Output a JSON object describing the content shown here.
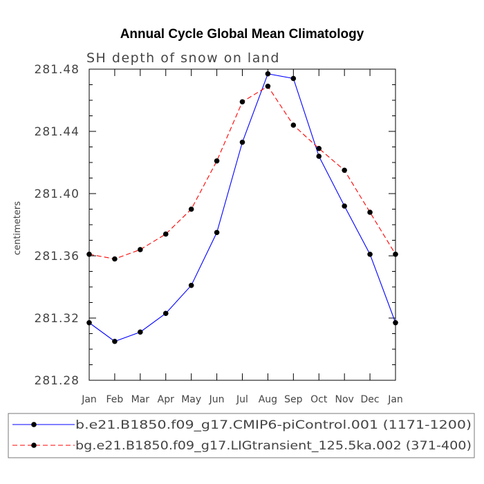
{
  "chart_data": {
    "type": "line",
    "title": "Annual Cycle Global Mean Climatology",
    "subtitle": "SH depth of snow on land",
    "ylabel": "centimeters",
    "xlabel": "",
    "categories": [
      "Jan",
      "Feb",
      "Mar",
      "Apr",
      "May",
      "Jun",
      "Jul",
      "Aug",
      "Sep",
      "Oct",
      "Nov",
      "Dec",
      "Jan"
    ],
    "ylim": [
      281.28,
      281.48
    ],
    "yticks": [
      "281.28",
      "281.32",
      "281.36",
      "281.40",
      "281.44",
      "281.48"
    ],
    "grid": false,
    "legend_position": "bottom",
    "series": [
      {
        "name": "b.e21.B1850.f09_g17.CMIP6-piControl.001 (1171-1200)",
        "color": "#0000ff",
        "dash": "solid",
        "values": [
          281.317,
          281.305,
          281.311,
          281.323,
          281.341,
          281.375,
          281.433,
          281.477,
          281.474,
          281.424,
          281.392,
          281.361,
          281.317
        ]
      },
      {
        "name": "bg.e21.B1850.f09_g17.LIGtransient_125.5ka.002 (371-400)",
        "color": "#ff0000",
        "dash": "dashed",
        "values": [
          281.361,
          281.358,
          281.364,
          281.374,
          281.39,
          281.421,
          281.459,
          281.469,
          281.444,
          281.429,
          281.415,
          281.388,
          281.361
        ]
      }
    ]
  }
}
